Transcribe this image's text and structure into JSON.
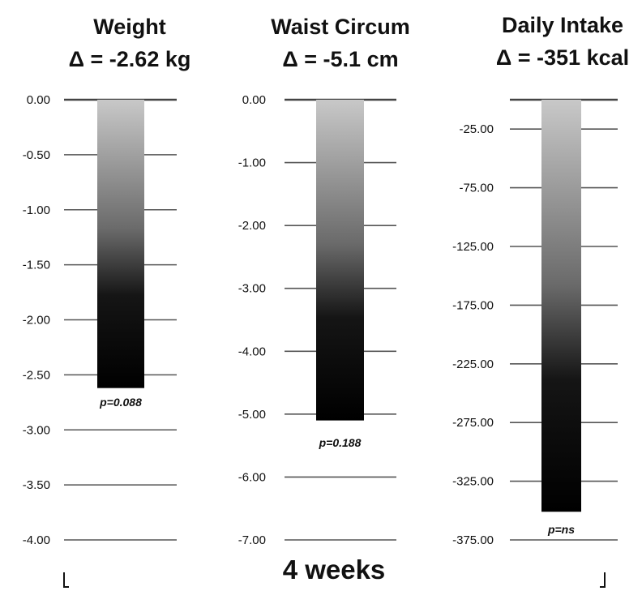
{
  "chart_data": [
    {
      "type": "bar",
      "title": "Weight",
      "subtitle": "Δ = -2.62 kg",
      "value": -2.62,
      "ylim": [
        -4.0,
        0.0
      ],
      "ticks": [
        0.0,
        -0.5,
        -1.0,
        -1.5,
        -2.0,
        -2.5,
        -3.0,
        -3.5,
        -4.0
      ],
      "tick_labels": [
        "0.00",
        "-0.50",
        "-1.00",
        "-1.50",
        "-2.00",
        "-2.50",
        "-3.00",
        "-3.50",
        "-4.00"
      ],
      "annotation": "p=0.088",
      "grid": true
    },
    {
      "type": "bar",
      "title": "Waist Circum",
      "subtitle": "Δ = -5.1 cm",
      "value": -5.1,
      "ylim": [
        -7.0,
        0.0
      ],
      "ticks": [
        0.0,
        -1.0,
        -2.0,
        -3.0,
        -4.0,
        -5.0,
        -6.0,
        -7.0
      ],
      "tick_labels": [
        "0.00",
        "-1.00",
        "-2.00",
        "-3.00",
        "-4.00",
        "-5.00",
        "-6.00",
        "-7.00"
      ],
      "annotation": "p=0.188",
      "grid": true
    },
    {
      "type": "bar",
      "title": "Daily Intake",
      "subtitle": "Δ = -351 kcal",
      "value": -351,
      "ylim": [
        -375,
        0
      ],
      "ticks": [
        -25,
        -75,
        -125,
        -175,
        -225,
        -275,
        -325,
        -375
      ],
      "tick_labels": [
        "-25.00",
        "-75.00",
        "-125.00",
        "-175.00",
        "-225.00",
        "-275.00",
        "-325.00",
        "-375.00"
      ],
      "annotation": "p=ns",
      "grid": true
    }
  ],
  "xlabel": "4 weeks",
  "colors": {
    "bar_top": "#c8c8c8",
    "bar_bottom": "#000000",
    "grid": "#555555"
  }
}
